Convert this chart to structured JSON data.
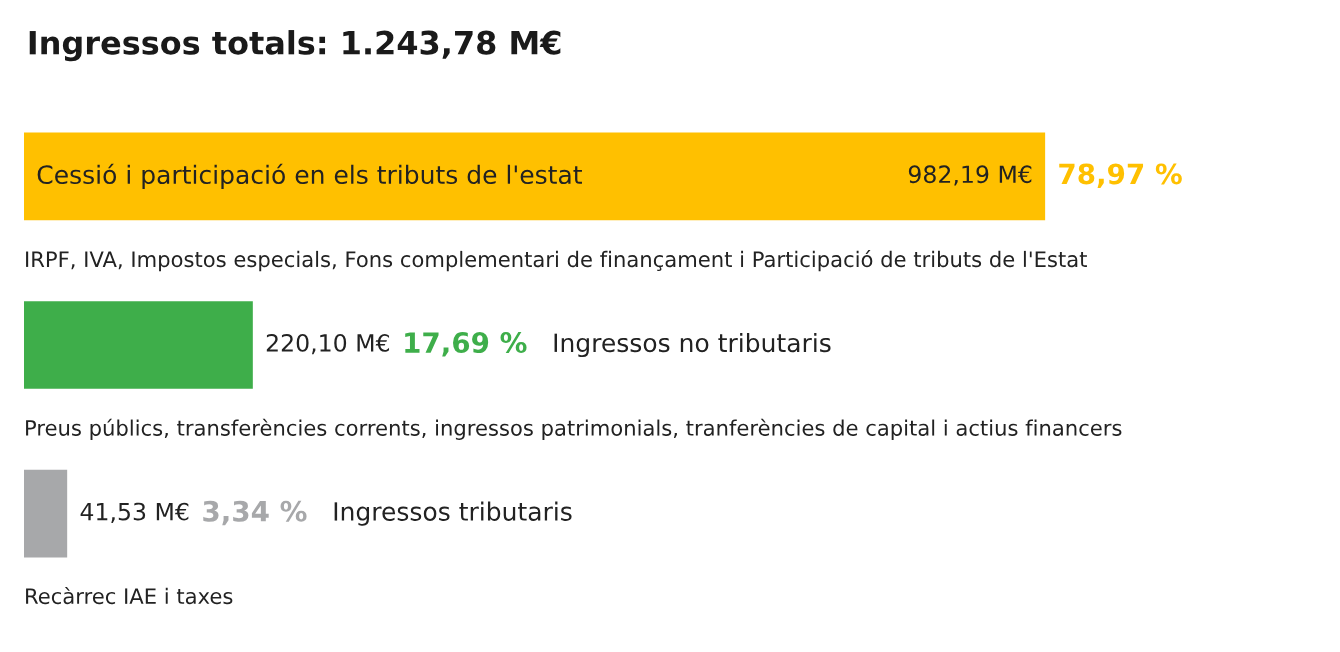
{
  "chart_data": {
    "type": "bar",
    "orientation": "horizontal",
    "title": "Ingressos totals: 1.243,78 M€",
    "categories": [
      "Cessió i participació en els tributs de l'estat",
      "Ingressos no tributaris",
      "Ingressos tributaris"
    ],
    "values": [
      982.19,
      220.1,
      41.53
    ],
    "colors": [
      "#ffc000",
      "#3eae4a",
      "#a7a8aa"
    ],
    "value_labels": [
      "982,19 M€",
      "220,10 M€",
      "41,53 M€"
    ],
    "annotations": [
      "78,97 %",
      "17,69 %",
      "3,34 %",
      "IRPF, IVA, Impostos especials, Fons complementari de finançament i Participació de tributs de l'Estat",
      "Preus públics, transferències corrents, ingressos patrimonials, tranferències de capital i actius financers",
      "Recàrrec IAE i taxes"
    ],
    "legend": false
  }
}
